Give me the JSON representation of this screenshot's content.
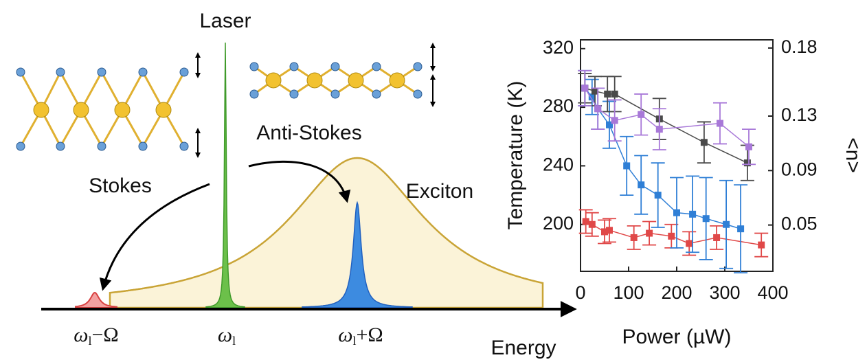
{
  "diagram": {
    "laser": "Laser",
    "anti_stokes": "Anti-Stokes",
    "stokes": "Stokes",
    "exciton": "Exciton",
    "energy": "Energy",
    "omega_minus": {
      "main": "ω",
      "sub": "l",
      "tail": "−Ω"
    },
    "omega": {
      "main": "ω",
      "sub": "l"
    },
    "omega_plus": {
      "main": "ω",
      "sub": "l",
      "tail": "+Ω"
    }
  },
  "chart_data": {
    "type": "scatter",
    "xlabel": "Power (µW)",
    "ylabel": "Temperature (K)",
    "y2label": "<n>",
    "xlim": [
      0,
      400
    ],
    "xticks": [
      0,
      100,
      200,
      300,
      400
    ],
    "ylim": [
      168,
      326
    ],
    "yticks": [
      200,
      240,
      280,
      320
    ],
    "y2lim": [
      0.016,
      0.186
    ],
    "y2ticks": [
      0.05,
      0.09,
      0.13,
      0.18
    ],
    "series": [
      {
        "color": "#e04848",
        "x": [
          11,
          24,
          50,
          60,
          111,
          143,
          189,
          226,
          283,
          376
        ],
        "values": [
          202,
          200,
          195,
          196,
          191,
          194,
          192,
          187,
          191,
          186
        ],
        "errors": [
          8,
          8,
          8,
          8,
          8,
          8,
          8,
          8,
          8,
          8
        ]
      },
      {
        "color": "#2f7fd6",
        "x": [
          9,
          24,
          36,
          60,
          96,
          126,
          161,
          200,
          233,
          261,
          303,
          333
        ],
        "values": [
          293,
          287,
          279,
          268,
          240,
          227,
          220,
          208,
          207,
          204,
          200,
          197
        ],
        "errors": [
          12,
          12,
          14,
          16,
          20,
          20,
          22,
          24,
          26,
          28,
          30,
          30
        ]
      },
      {
        "color": "#4a4a4a",
        "x": [
          9,
          30,
          56,
          71,
          164,
          257,
          347
        ],
        "values": [
          293,
          291,
          289,
          289,
          272,
          256,
          242
        ],
        "errors": [
          10,
          10,
          12,
          12,
          14,
          14,
          12
        ]
      },
      {
        "color": "#a878d8",
        "x": [
          9,
          36,
          71,
          126,
          164,
          290,
          350
        ],
        "values": [
          293,
          279,
          271,
          275,
          265,
          269,
          253
        ],
        "errors": [
          12,
          14,
          14,
          14,
          14,
          14,
          12
        ]
      }
    ]
  }
}
